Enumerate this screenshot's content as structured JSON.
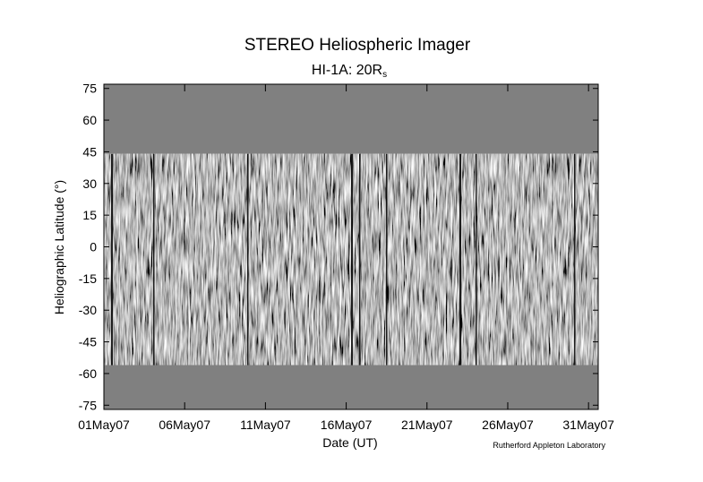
{
  "chart_data": {
    "type": "heatmap",
    "title": "STEREO Heliospheric Imager",
    "subtitle_main": "HI-1A: 20R",
    "subtitle_sub": "s",
    "xlabel": "Date (UT)",
    "ylabel": "Heliographic Latitude (°)",
    "credit": "Rutherford Appleton Laboratory",
    "x_ticks": [
      "01May07",
      "06May07",
      "11May07",
      "16May07",
      "21May07",
      "26May07",
      "31May07"
    ],
    "x_tick_days": [
      1,
      6,
      11,
      16,
      21,
      26,
      31
    ],
    "x_range_days": [
      1,
      31.6
    ],
    "y_ticks": [
      75,
      60,
      45,
      30,
      15,
      0,
      -15,
      -30,
      -45,
      -60,
      -75
    ],
    "ylim": [
      -77,
      77
    ],
    "data_lat_range": [
      -56,
      44
    ],
    "grid": false,
    "colors": {
      "background_gray": "#808080",
      "frame": "#000000"
    }
  }
}
